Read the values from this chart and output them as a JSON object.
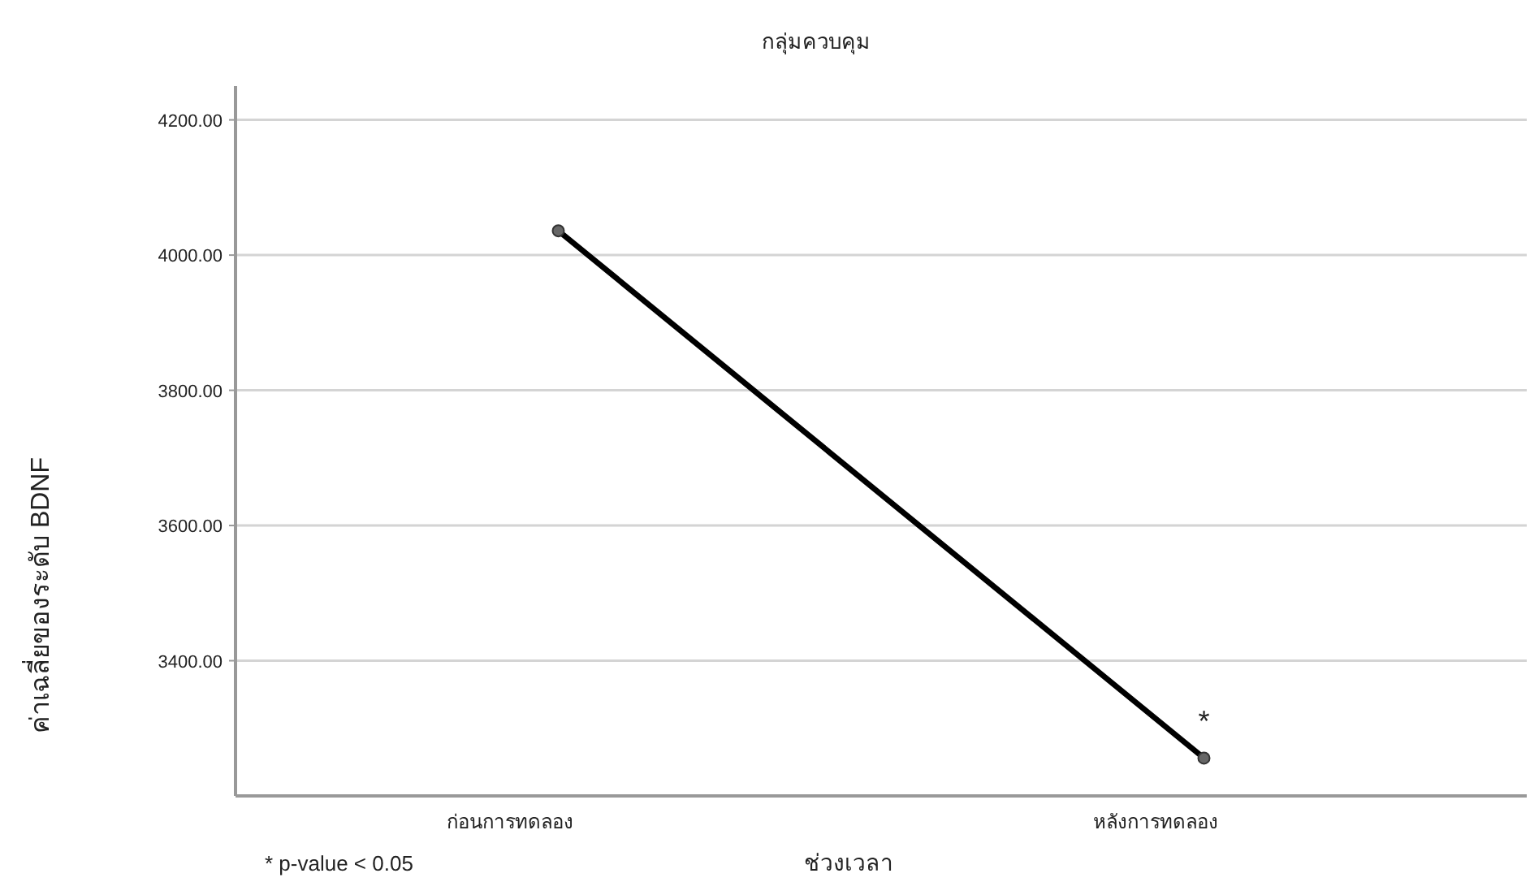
{
  "chart_data": {
    "type": "line",
    "title": "กลุ่มควบคุม",
    "xlabel": "ช่วงเวลา",
    "ylabel": "ค่าเฉลี่ยของระดับ  BDNF",
    "categories": [
      "ก่อนการทดลอง",
      "หลังการทดลอง"
    ],
    "series": [
      {
        "color": "#000000",
        "values": [
          4036,
          3256
        ]
      }
    ],
    "ylim": [
      3200,
      4250
    ],
    "yticks": [
      {
        "value": 3400,
        "label": "3400.00"
      },
      {
        "value": 3600,
        "label": "3600.00"
      },
      {
        "value": 3800,
        "label": "3800.00"
      },
      {
        "value": 4000,
        "label": "4000.00"
      },
      {
        "value": 4200,
        "label": "4200.00"
      }
    ],
    "grid": "y",
    "marker": "circle",
    "line_style": "solid",
    "annotations": [
      {
        "text": "*",
        "x": "หลังการทดลอง",
        "y": 3310
      },
      "* p-value < 0.05"
    ]
  }
}
